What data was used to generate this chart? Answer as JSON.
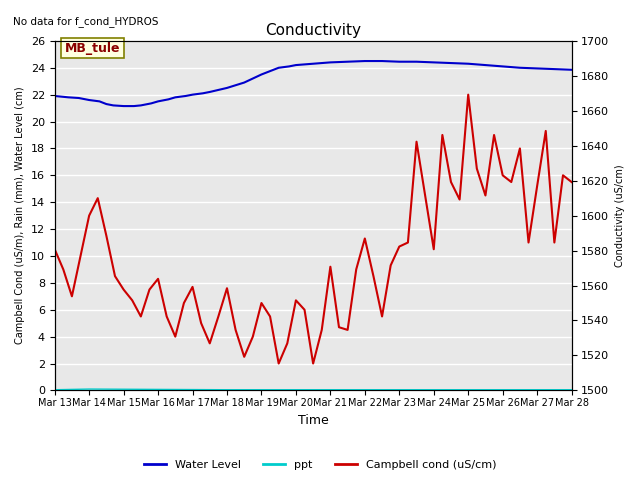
{
  "title": "Conductivity",
  "top_left_text": "No data for f_cond_HYDROS",
  "xlabel": "Time",
  "ylabel_left": "Campbell Cond (uS/m), Rain (mm), Water Level (cm)",
  "ylabel_right": "Conductivity (uS/cm)",
  "annotation_box": "MB_tule",
  "ylim_left": [
    0,
    26
  ],
  "ylim_right": [
    1500,
    1700
  ],
  "bg_color": "#e8e8e8",
  "fig_color": "#ffffff",
  "grid_color": "#ffffff",
  "x_ticks": [
    "Mar 13",
    "Mar 14",
    "Mar 15",
    "Mar 16",
    "Mar 17",
    "Mar 18",
    "Mar 19",
    "Mar 20",
    "Mar 21",
    "Mar 22",
    "Mar 23",
    "Mar 24",
    "Mar 25",
    "Mar 26",
    "Mar 27",
    "Mar 28"
  ],
  "water_level_color": "#0000cc",
  "ppt_color": "#00cccc",
  "campbell_color": "#cc0000",
  "water_level_x": [
    0,
    0.2,
    0.4,
    0.7,
    1.0,
    1.3,
    1.5,
    1.7,
    2.0,
    2.3,
    2.5,
    2.8,
    3.0,
    3.3,
    3.5,
    3.8,
    4.0,
    4.3,
    4.5,
    5.0,
    5.5,
    6.0,
    6.3,
    6.5,
    6.8,
    7.0,
    7.5,
    8.0,
    8.5,
    9.0,
    9.5,
    10.0,
    10.5,
    11.0,
    11.5,
    12.0,
    12.5,
    13.0,
    13.5,
    14.0,
    14.5,
    15.0
  ],
  "water_level_y": [
    21.9,
    21.85,
    21.8,
    21.75,
    21.6,
    21.5,
    21.3,
    21.2,
    21.15,
    21.15,
    21.2,
    21.35,
    21.5,
    21.65,
    21.8,
    21.9,
    22.0,
    22.1,
    22.2,
    22.5,
    22.9,
    23.5,
    23.8,
    24.0,
    24.1,
    24.2,
    24.3,
    24.4,
    24.45,
    24.5,
    24.5,
    24.45,
    24.45,
    24.4,
    24.35,
    24.3,
    24.2,
    24.1,
    24.0,
    23.95,
    23.9,
    23.85
  ],
  "ppt_x": [
    0,
    1.0,
    5.0,
    7.5,
    11.0,
    15.0
  ],
  "ppt_y": [
    0.05,
    0.1,
    0.05,
    0.05,
    0.05,
    0.05
  ],
  "campbell_x": [
    0,
    0.25,
    0.5,
    0.75,
    1.0,
    1.25,
    1.5,
    1.75,
    2.0,
    2.25,
    2.5,
    2.75,
    3.0,
    3.25,
    3.5,
    3.75,
    4.0,
    4.25,
    4.5,
    4.75,
    5.0,
    5.25,
    5.5,
    5.75,
    6.0,
    6.25,
    6.5,
    6.75,
    7.0,
    7.25,
    7.5,
    7.75,
    8.0,
    8.25,
    8.5,
    8.75,
    9.0,
    9.25,
    9.5,
    9.75,
    10.0,
    10.25,
    10.5,
    10.75,
    11.0,
    11.25,
    11.5,
    11.75,
    12.0,
    12.25,
    12.5,
    12.75,
    13.0,
    13.25,
    13.5,
    13.75,
    14.0,
    14.25,
    14.5,
    14.75,
    15.0
  ],
  "campbell_y": [
    10.5,
    9.0,
    7.0,
    10.0,
    13.0,
    14.3,
    11.5,
    8.5,
    7.5,
    6.7,
    5.5,
    7.5,
    8.3,
    5.5,
    4.0,
    6.5,
    7.7,
    5.0,
    3.5,
    5.5,
    7.6,
    4.5,
    2.5,
    4.0,
    6.5,
    5.5,
    2.0,
    3.5,
    6.7,
    6.0,
    2.0,
    4.5,
    9.2,
    4.7,
    4.5,
    9.0,
    11.3,
    8.5,
    5.5,
    9.3,
    10.7,
    11.0,
    18.5,
    14.5,
    10.5,
    19.0,
    15.5,
    14.2,
    22.0,
    16.5,
    14.5,
    19.0,
    16.0,
    15.5,
    18.0,
    11.0,
    15.2,
    19.3,
    11.0,
    16.0,
    15.5
  ],
  "legend_labels": [
    "Water Level",
    "ppt",
    "Campbell cond (uS/cm)"
  ]
}
